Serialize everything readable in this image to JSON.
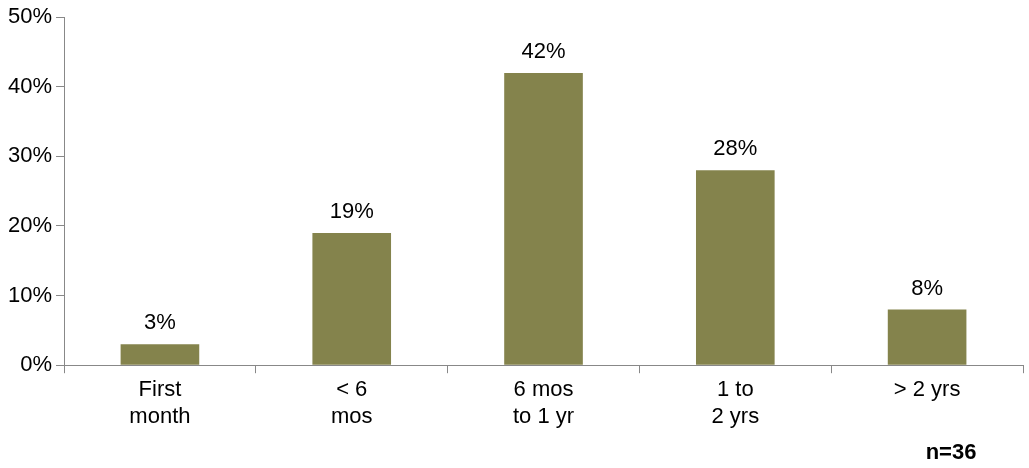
{
  "chart_data": {
    "type": "bar",
    "categories": [
      "First\nmonth",
      "< 6\nmos",
      "6 mos\nto 1 yr",
      "1 to\n2 yrs",
      "> 2 yrs"
    ],
    "values": [
      3,
      19,
      42,
      28,
      8
    ],
    "color": "#84834c",
    "ylim": [
      0,
      50
    ],
    "yticks": [
      {
        "value": 0,
        "label": "0%"
      },
      {
        "value": 10,
        "label": "10%"
      },
      {
        "value": 20,
        "label": "20%"
      },
      {
        "value": 30,
        "label": "30%"
      },
      {
        "value": 40,
        "label": "40%"
      },
      {
        "value": 50,
        "label": "50%"
      }
    ],
    "value_labels": [
      "3%",
      "19%",
      "42%",
      "28%",
      "8%"
    ],
    "annotations": [
      "n=36"
    ]
  }
}
